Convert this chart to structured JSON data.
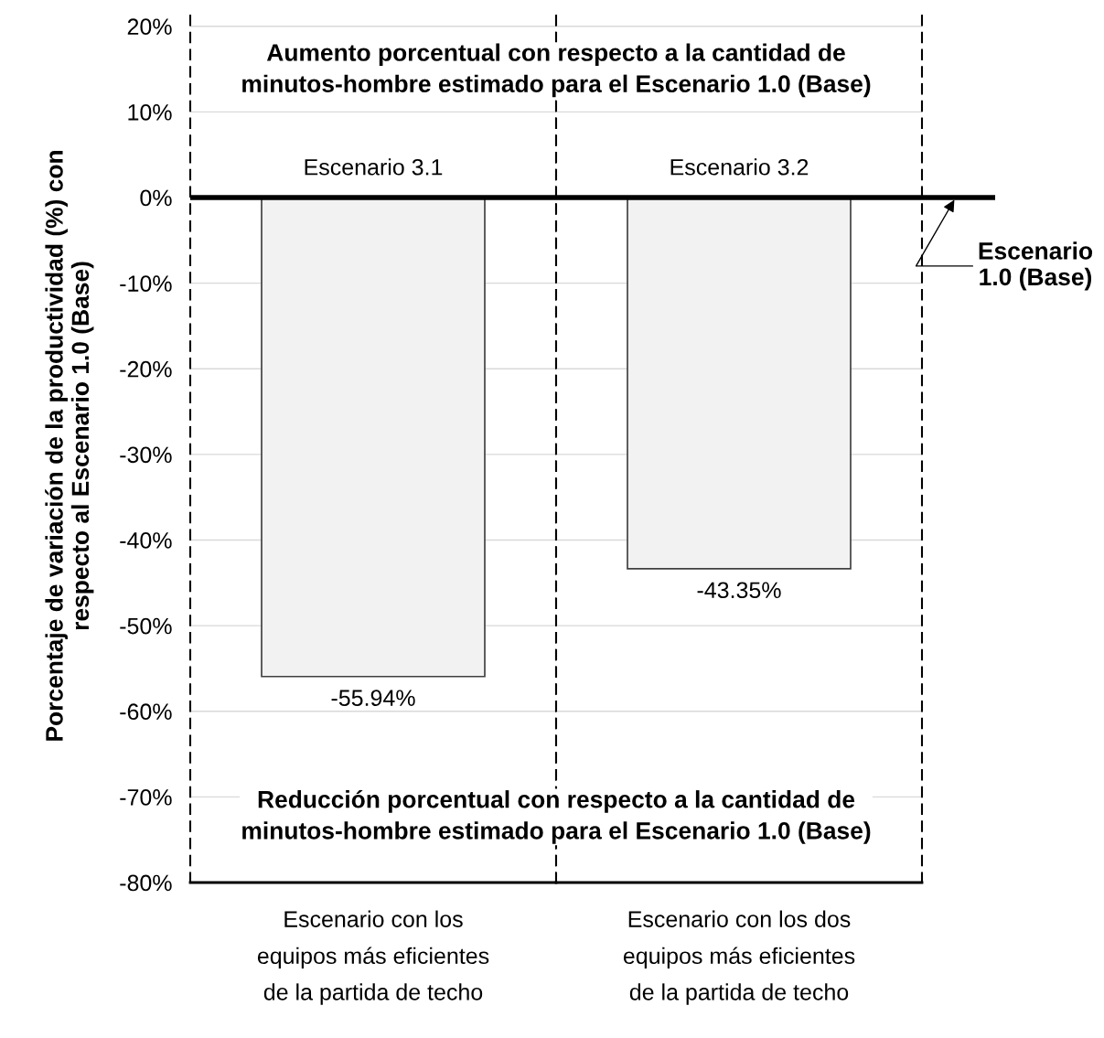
{
  "chart_data": [
    {
      "type": "bar",
      "categories": [
        "Escenario con los\nequipos más eficientes\nde la partida de techo"
      ],
      "values": [
        -55.94
      ],
      "value_labels": [
        "-55.94%"
      ],
      "color": "#f2f2f2",
      "ylabel": "Porcentaje de variación de la productividad (%) con\nrespecto al Escenario 1.0 (Base)",
      "ylim": [
        -80,
        22
      ],
      "yticks": [
        {
          "value": -80,
          "label": "-80%"
        },
        {
          "value": -70,
          "label": "-70%"
        },
        {
          "value": -60,
          "label": "-60%"
        },
        {
          "value": -50,
          "label": "-50%"
        },
        {
          "value": -40,
          "label": "-40%"
        },
        {
          "value": -30,
          "label": "-30%"
        },
        {
          "value": -20,
          "label": "-20%"
        },
        {
          "value": -10,
          "label": "-10%"
        },
        {
          "value": 0,
          "label": "0%"
        },
        {
          "value": 10,
          "label": "10%"
        },
        {
          "value": 20,
          "label": "20%"
        }
      ],
      "grid": "y",
      "annotations": [
        "Aumento porcentual con respecto a la cantidad de\nminutos-hombre estimado para el Escenario 1.0 (Base)",
        "Reducción porcentual con respecto a la cantidad de\nminutos-hombre estimado para el Escenario 1.0 (Base)",
        {
          "text": "Escenario 3.1",
          "x": "Escenario con los\nequipos más eficientes\nde la partida de techo",
          "y": 0
        }
      ],
      "ref_lines": [
        {
          "axis": "y",
          "value": 0,
          "color": "#000000",
          "line_style": "solid"
        }
      ]
    },
    {
      "type": "bar",
      "categories": [
        "Escenario con los dos\nequipos más eficientes\nde la partida de techo"
      ],
      "values": [
        -43.35
      ],
      "value_labels": [
        "-43.35%"
      ],
      "color": "#f2f2f2",
      "ylim": [
        -80,
        22
      ],
      "yticks": [
        {
          "value": -80,
          "label": null
        },
        {
          "value": -70,
          "label": null
        },
        {
          "value": -60,
          "label": null
        },
        {
          "value": -50,
          "label": null
        },
        {
          "value": -40,
          "label": null
        },
        {
          "value": -30,
          "label": null
        },
        {
          "value": -20,
          "label": null
        },
        {
          "value": -10,
          "label": null
        },
        {
          "value": 0,
          "label": null
        },
        {
          "value": 10,
          "label": null
        },
        {
          "value": 20,
          "label": null
        }
      ],
      "tick_labels": "x",
      "grid": "y",
      "annotations": [
        {
          "text": "Escenario 3.2",
          "x": "Escenario con los dos\nequipos más eficientes\nde la partida de techo",
          "y": 0
        }
      ],
      "ref_lines": [
        {
          "axis": "y",
          "value": 0,
          "label": "Escenario\n1.0 (Base)",
          "color": "#000000",
          "line_style": "solid"
        }
      ]
    }
  ]
}
